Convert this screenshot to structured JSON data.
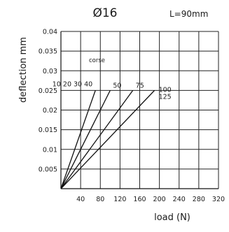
{
  "chart_data": {
    "type": "line",
    "title": "Ø16",
    "subtitle": "L=90mm",
    "xlabel": "load (N)",
    "ylabel": "deflection mm",
    "xlim": [
      0,
      320
    ],
    "ylim": [
      0,
      0.04
    ],
    "x_ticks": [
      "40",
      "80",
      "120",
      "160",
      "200",
      "240",
      "280",
      "320"
    ],
    "y_ticks": [
      "0.005",
      "0.01",
      "0.015",
      "0.02",
      "0.025",
      "0.03",
      "0.035",
      "0.04"
    ],
    "grid": true,
    "annotation": "corse",
    "series": [
      {
        "name": "10 20 30 40",
        "x": [
          0,
          70
        ],
        "y": [
          0,
          0.025
        ]
      },
      {
        "name": "50",
        "x": [
          0,
          100
        ],
        "y": [
          0,
          0.025
        ]
      },
      {
        "name": "75",
        "x": [
          0,
          146
        ],
        "y": [
          0,
          0.025
        ]
      },
      {
        "name": "100 125",
        "x": [
          0,
          190
        ],
        "y": [
          0,
          0.025
        ]
      }
    ],
    "series_label_offsets": [
      {
        "dx": -4,
        "dy": -6
      },
      {
        "dx": 4,
        "dy": -4
      },
      {
        "dx": 4,
        "dy": -4
      },
      {
        "dx": 6,
        "dy": 2
      }
    ]
  }
}
